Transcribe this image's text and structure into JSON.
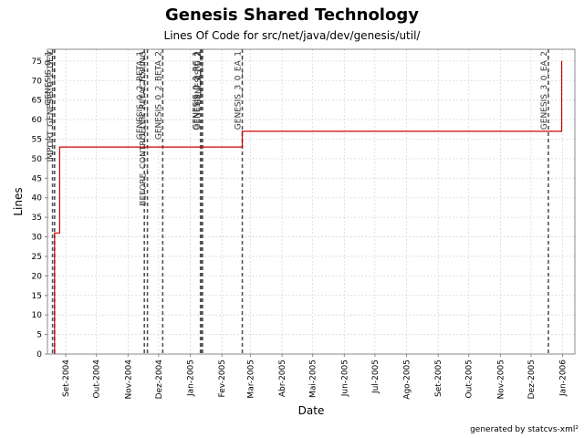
{
  "header": {
    "title": "Genesis Shared Technology",
    "subtitle": "Lines Of Code for src/net/java/dev/genesis/util/"
  },
  "footer": {
    "credit": "generated by statcvs-xml²"
  },
  "colors": {
    "series": "#cc0000",
    "grid": "#d8d8d8",
    "tag_line": "#555555",
    "axis": "#888888"
  },
  "chart_data": {
    "type": "line",
    "title": "Genesis Shared Technology",
    "subtitle": "Lines Of Code for src/net/java/dev/genesis/util/",
    "xlabel": "Date",
    "ylabel": "Lines",
    "ylim": [
      0,
      78
    ],
    "y_ticks": [
      0,
      5,
      10,
      15,
      20,
      25,
      30,
      35,
      40,
      45,
      50,
      55,
      60,
      65,
      70,
      75
    ],
    "xlim": [
      "2004-08-14",
      "2006-01-13"
    ],
    "x_ticks": [
      {
        "date": "2004-09-01",
        "label": "Set-2004"
      },
      {
        "date": "2004-10-01",
        "label": "Out-2004"
      },
      {
        "date": "2004-11-01",
        "label": "Nov-2004"
      },
      {
        "date": "2004-12-01",
        "label": "Dez-2004"
      },
      {
        "date": "2005-01-01",
        "label": "Jan-2005"
      },
      {
        "date": "2005-02-01",
        "label": "Fev-2005"
      },
      {
        "date": "2005-03-01",
        "label": "Mar-2005"
      },
      {
        "date": "2005-04-01",
        "label": "Abr-2005"
      },
      {
        "date": "2005-05-01",
        "label": "Mai-2005"
      },
      {
        "date": "2005-06-01",
        "label": "Jun-2005"
      },
      {
        "date": "2005-07-01",
        "label": "Jul-2005"
      },
      {
        "date": "2005-08-01",
        "label": "Ago-2005"
      },
      {
        "date": "2005-09-01",
        "label": "Set-2005"
      },
      {
        "date": "2005-10-01",
        "label": "Out-2005"
      },
      {
        "date": "2005-11-01",
        "label": "Nov-2005"
      },
      {
        "date": "2005-12-01",
        "label": "Dez-2005"
      },
      {
        "date": "2006-01-01",
        "label": "Jan-2006"
      }
    ],
    "grid": true,
    "step": true,
    "series": [
      {
        "points": [
          {
            "x": "2004-08-21",
            "y": 0
          },
          {
            "x": "2004-08-21",
            "y": 31
          },
          {
            "x": "2004-08-26",
            "y": 31
          },
          {
            "x": "2004-08-26",
            "y": 53
          },
          {
            "x": "2005-02-21",
            "y": 53
          },
          {
            "x": "2005-02-21",
            "y": 57
          },
          {
            "x": "2005-12-31",
            "y": 57
          },
          {
            "x": "2005-12-31",
            "y": 75
          }
        ]
      }
    ],
    "tags": [
      {
        "date": "2004-08-19",
        "label": "GENESIS_0_1"
      },
      {
        "date": "2004-08-21",
        "label": "IMPORT_GENESIS_0_2_DEV"
      },
      {
        "date": "2004-11-17",
        "label": "GENESIS_0_2_BETA_1"
      },
      {
        "date": "2004-11-20",
        "label": "BEFORE_CONTROLLER_REFACTORING"
      },
      {
        "date": "2004-12-05",
        "label": "GENESIS_0_2_BETA_2"
      },
      {
        "date": "2005-01-11",
        "label": "GENESIS_0_2_RC_1"
      },
      {
        "date": "2005-01-12",
        "label": "GENESIS_0_2_RC_2"
      },
      {
        "date": "2005-01-13",
        "label": "GENESIS_0_2"
      },
      {
        "date": "2005-02-21",
        "label": "GENESIS_3_0_EA_1"
      },
      {
        "date": "2005-12-18",
        "label": "GENESIS_3_0_EA_2"
      }
    ]
  }
}
